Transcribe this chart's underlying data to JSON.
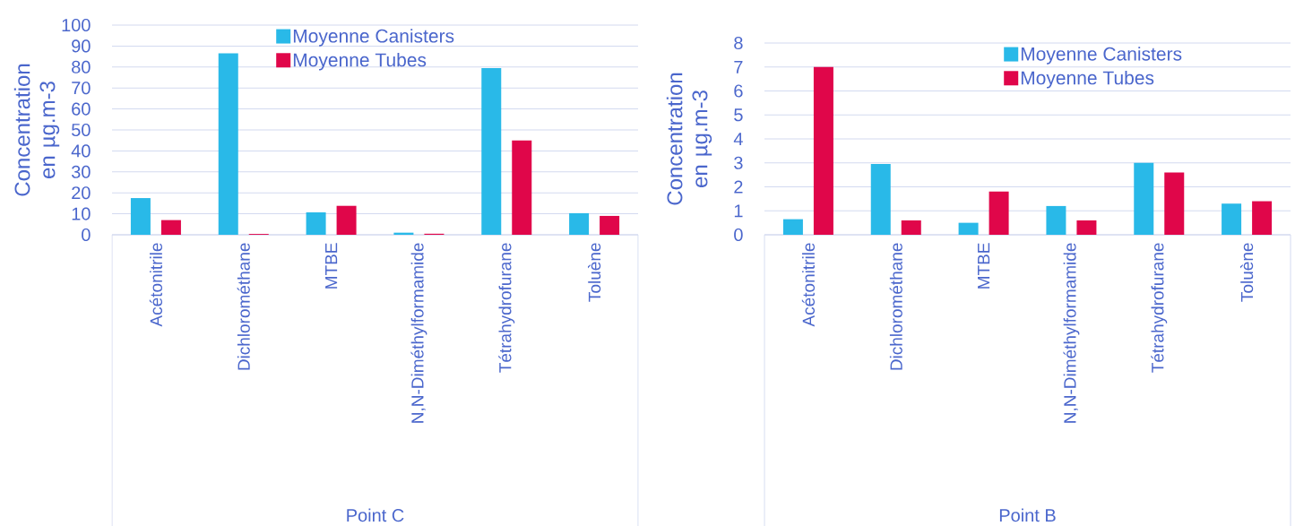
{
  "chart_data": [
    {
      "type": "bar",
      "xlabel": "Point C",
      "ylabel": "Concentration en µg.m-3",
      "categories": [
        "Acétonitrile",
        "Dichlorométhane",
        "MTBE",
        "N,N-Diméthylformamide",
        "Tétrahydrofurane",
        "Toluène"
      ],
      "series": [
        {
          "name": "Moyenne Canisters",
          "color": "#29b9e8",
          "values": [
            17.5,
            86.5,
            10.7,
            1,
            79.5,
            10.3
          ]
        },
        {
          "name": "Moyenne Tubes",
          "color": "#e0064a",
          "values": [
            7,
            0.4,
            13.8,
            0.5,
            45,
            9
          ]
        }
      ],
      "ylim": [
        0,
        100
      ],
      "yticks": [
        0,
        10,
        20,
        30,
        40,
        50,
        60,
        70,
        80,
        90,
        100
      ],
      "grid": "y",
      "legend": "top"
    },
    {
      "type": "bar",
      "xlabel": "Point B",
      "ylabel": "Concentration en µg.m-3",
      "categories": [
        "Acétonitrile",
        "Dichlorométhane",
        "MTBE",
        "N,N-Diméthylformamide",
        "Tétrahydrofurane",
        "Toluène"
      ],
      "series": [
        {
          "name": "Moyenne Canisters",
          "color": "#29b9e8",
          "values": [
            0.65,
            2.95,
            0.5,
            1.2,
            3.0,
            1.3
          ]
        },
        {
          "name": "Moyenne Tubes",
          "color": "#e0064a",
          "values": [
            7,
            0.6,
            1.8,
            0.6,
            2.6,
            1.4
          ]
        }
      ],
      "ylim": [
        0,
        8
      ],
      "yticks": [
        0,
        1,
        2,
        3,
        4,
        5,
        6,
        7,
        8
      ],
      "grid": "y",
      "legend": "top"
    }
  ]
}
